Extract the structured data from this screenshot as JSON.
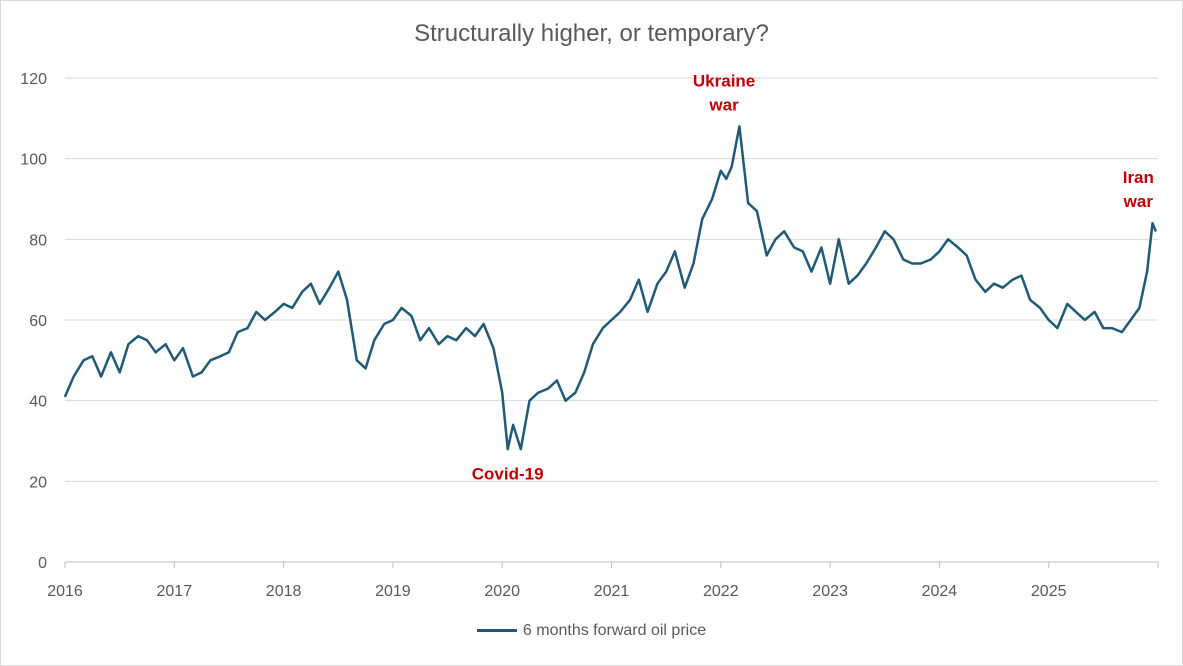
{
  "chart_data": {
    "type": "line",
    "title": "Structurally higher, or temporary?",
    "xlabel": "",
    "ylabel": "",
    "ylim": [
      0,
      120
    ],
    "xlim": [
      2016,
      2026
    ],
    "yticks": [
      0,
      20,
      40,
      60,
      80,
      100,
      120
    ],
    "xticks": [
      "2016",
      "2017",
      "2018",
      "2019",
      "2020",
      "2021",
      "2022",
      "2023",
      "2024",
      "2025"
    ],
    "grid": "horizontal",
    "legend_position": "bottom",
    "series": [
      {
        "name": "6 months forward oil price",
        "color": "#1f5a78",
        "x": [
          2016.0,
          2016.08,
          2016.17,
          2016.25,
          2016.33,
          2016.42,
          2016.5,
          2016.58,
          2016.67,
          2016.75,
          2016.83,
          2016.92,
          2017.0,
          2017.08,
          2017.17,
          2017.25,
          2017.33,
          2017.42,
          2017.5,
          2017.58,
          2017.67,
          2017.75,
          2017.83,
          2017.92,
          2018.0,
          2018.08,
          2018.17,
          2018.25,
          2018.33,
          2018.42,
          2018.5,
          2018.58,
          2018.67,
          2018.75,
          2018.83,
          2018.92,
          2019.0,
          2019.08,
          2019.17,
          2019.25,
          2019.33,
          2019.42,
          2019.5,
          2019.58,
          2019.67,
          2019.75,
          2019.83,
          2019.92,
          2020.0,
          2020.05,
          2020.1,
          2020.17,
          2020.25,
          2020.33,
          2020.42,
          2020.5,
          2020.58,
          2020.67,
          2020.75,
          2020.83,
          2020.92,
          2021.0,
          2021.08,
          2021.17,
          2021.25,
          2021.33,
          2021.42,
          2021.5,
          2021.58,
          2021.67,
          2021.75,
          2021.83,
          2021.92,
          2022.0,
          2022.05,
          2022.1,
          2022.17,
          2022.25,
          2022.33,
          2022.42,
          2022.5,
          2022.58,
          2022.67,
          2022.75,
          2022.83,
          2022.92,
          2023.0,
          2023.08,
          2023.17,
          2023.25,
          2023.33,
          2023.42,
          2023.5,
          2023.58,
          2023.67,
          2023.75,
          2023.83,
          2023.92,
          2024.0,
          2024.08,
          2024.17,
          2024.25,
          2024.33,
          2024.42,
          2024.5,
          2024.58,
          2024.67,
          2024.75,
          2024.83,
          2024.92,
          2025.0,
          2025.08,
          2025.17,
          2025.25,
          2025.33,
          2025.42,
          2025.5,
          2025.58,
          2025.67,
          2025.75,
          2025.83,
          2025.9,
          2025.95,
          2025.98
        ],
        "values": [
          41,
          46,
          50,
          51,
          46,
          52,
          47,
          54,
          56,
          55,
          52,
          54,
          50,
          53,
          46,
          47,
          50,
          51,
          52,
          57,
          58,
          62,
          60,
          62,
          64,
          63,
          67,
          69,
          64,
          68,
          72,
          65,
          50,
          48,
          55,
          59,
          60,
          63,
          61,
          55,
          58,
          54,
          56,
          55,
          58,
          56,
          59,
          53,
          42,
          28,
          34,
          28,
          40,
          42,
          43,
          45,
          40,
          42,
          47,
          54,
          58,
          60,
          62,
          65,
          70,
          62,
          69,
          72,
          77,
          68,
          74,
          85,
          90,
          97,
          95,
          98,
          108,
          89,
          87,
          76,
          80,
          82,
          78,
          77,
          72,
          78,
          69,
          80,
          69,
          71,
          74,
          78,
          82,
          80,
          75,
          74,
          74,
          75,
          77,
          80,
          78,
          76,
          70,
          67,
          69,
          68,
          70,
          71,
          65,
          63,
          60,
          58,
          64,
          62,
          60,
          62,
          58,
          58,
          57,
          60,
          63,
          72,
          84,
          82
        ]
      }
    ],
    "annotations": [
      {
        "text": [
          "Ukraine",
          "war"
        ],
        "x": 2022.03,
        "y": 108
      },
      {
        "text": [
          "Iran",
          "war"
        ],
        "x": 2025.82,
        "y": 84
      },
      {
        "text": [
          "Covid-19"
        ],
        "x": 2020.05,
        "y": 22
      }
    ]
  }
}
